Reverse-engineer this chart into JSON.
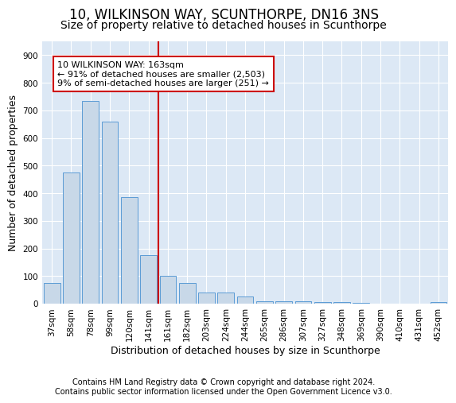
{
  "title": "10, WILKINSON WAY, SCUNTHORPE, DN16 3NS",
  "subtitle": "Size of property relative to detached houses in Scunthorpe",
  "xlabel": "Distribution of detached houses by size in Scunthorpe",
  "ylabel": "Number of detached properties",
  "categories": [
    "37sqm",
    "58sqm",
    "78sqm",
    "99sqm",
    "120sqm",
    "141sqm",
    "161sqm",
    "182sqm",
    "203sqm",
    "224sqm",
    "244sqm",
    "265sqm",
    "286sqm",
    "307sqm",
    "327sqm",
    "348sqm",
    "369sqm",
    "390sqm",
    "410sqm",
    "431sqm",
    "452sqm"
  ],
  "values": [
    75,
    475,
    735,
    660,
    385,
    175,
    100,
    75,
    40,
    40,
    25,
    10,
    10,
    10,
    5,
    5,
    3,
    0,
    0,
    0,
    5
  ],
  "bar_color": "#c8d8e8",
  "bar_edge_color": "#5b9bd5",
  "vline_color": "#cc0000",
  "annotation_box_text": "10 WILKINSON WAY: 163sqm\n← 91% of detached houses are smaller (2,503)\n9% of semi-detached houses are larger (251) →",
  "annotation_box_color": "#cc0000",
  "ylim": [
    0,
    950
  ],
  "yticks": [
    0,
    100,
    200,
    300,
    400,
    500,
    600,
    700,
    800,
    900
  ],
  "bg_color": "#dce8f5",
  "footer_line1": "Contains HM Land Registry data © Crown copyright and database right 2024.",
  "footer_line2": "Contains public sector information licensed under the Open Government Licence v3.0.",
  "title_fontsize": 12,
  "subtitle_fontsize": 10,
  "axis_label_fontsize": 9,
  "tick_fontsize": 7.5,
  "footer_fontsize": 7,
  "annot_fontsize": 8
}
